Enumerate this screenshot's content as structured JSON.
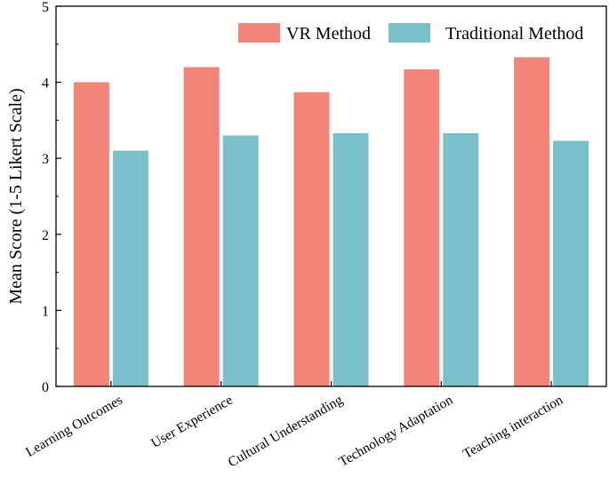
{
  "chart_data": {
    "type": "bar",
    "categories": [
      "Learning Outcomes",
      "User Experience",
      "Cultural Understanding",
      "Technology Adaptation",
      "Teaching interaction"
    ],
    "series": [
      {
        "name": "VR Method",
        "color": "#F2847A",
        "values": [
          4.0,
          4.2,
          3.87,
          4.17,
          4.33
        ]
      },
      {
        "name": "Traditional Method",
        "color": "#7BBFCB",
        "values": [
          3.1,
          3.3,
          3.33,
          3.33,
          3.23
        ]
      }
    ],
    "title": "",
    "xlabel": "",
    "ylabel": "Mean Score (1-5 Likert Scale)",
    "ylim": [
      0,
      5
    ],
    "yticks": [
      "0",
      "1",
      "2",
      "3",
      "4",
      "5"
    ],
    "grid": false,
    "legend_position": "top-right"
  }
}
